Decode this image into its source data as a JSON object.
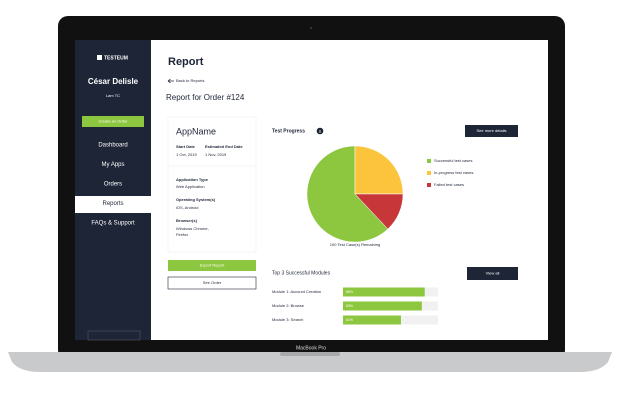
{
  "sidebar": {
    "logo": "TESTEUM",
    "user_name": "César Delisle",
    "user_role": "Lam TC",
    "create_button": "Create an Order",
    "menu": [
      "Dashboard",
      "My Apps",
      "Orders",
      "Reports",
      "FAQs & Support"
    ]
  },
  "page": {
    "title": "Report",
    "back_link": "Back to Reports",
    "subtitle": "Report for Order #124"
  },
  "app_card": {
    "name": "AppName",
    "start_label": "Start Date",
    "end_label": "Estimated End Date",
    "start": "1 Oct, 2019",
    "end": "1 Nov, 2019",
    "app_type_label": "Application Type",
    "app_type": "Web Application",
    "os_label": "Operating System(s)",
    "os": "iOS, Android",
    "browser_label": "Browser(s)",
    "browsers": [
      "Windows Chrome,",
      "Firefox"
    ]
  },
  "buttons": {
    "export": "Export Report",
    "see_order": "See Order",
    "more_details": "See more details",
    "view_all": "View all"
  },
  "device_label": "MacBook Pro",
  "chart_data": [
    {
      "type": "pie",
      "title": "Test Progress",
      "categories": [
        "Successful test cases",
        "In-progress test cases",
        "Failed test cases"
      ],
      "values": [
        62,
        25,
        13
      ],
      "colors": [
        "#8dc63f",
        "#fcc43d",
        "#c7373a"
      ],
      "caption": "100 Test Case(s) Remaining"
    },
    {
      "type": "bar",
      "title": "Top 3 Successful Modules",
      "categories": [
        "Module 1: Account Creation",
        "Module 2: Browse",
        "Module 3: Search"
      ],
      "values": [
        86,
        83,
        61
      ],
      "value_labels": [
        "86%",
        "83%",
        "61%"
      ],
      "color": "#8dc63f",
      "xlim": [
        0,
        100
      ]
    }
  ]
}
